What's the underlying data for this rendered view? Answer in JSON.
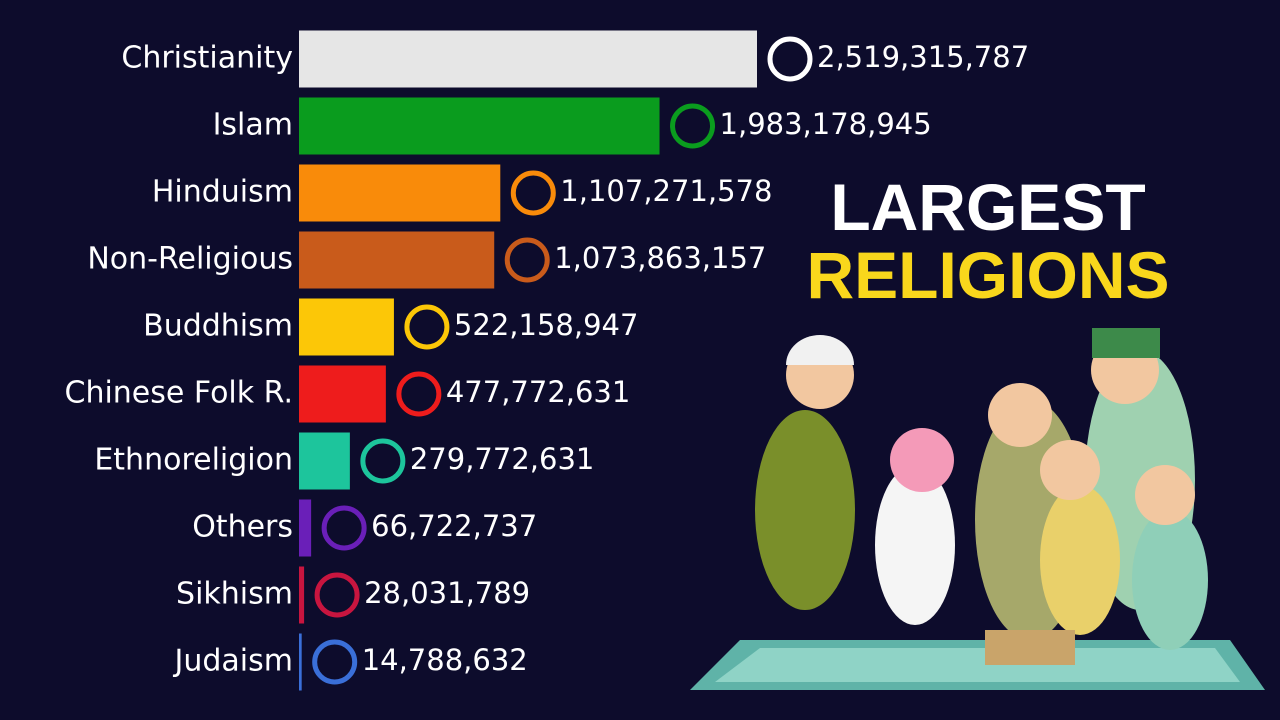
{
  "chart_data": {
    "type": "bar",
    "orientation": "horizontal",
    "title": "LARGEST",
    "subtitle": "RELIGIONS",
    "categories": [
      "Christianity",
      "Islam",
      "Hinduism",
      "Non-Religious",
      "Buddhism",
      "Chinese Folk R.",
      "Ethnoreligion",
      "Others",
      "Sikhism",
      "Judaism"
    ],
    "values": [
      2519315787,
      1983178945,
      1107271578,
      1073863157,
      522158947,
      477772631,
      279772631,
      66722737,
      28031789,
      14788632
    ],
    "value_labels": [
      "2,519,315,787",
      "1,983,178,945",
      "1,107,271,578",
      "1,073,863,157",
      "522,158,947",
      "477,772,631",
      "279,772,631",
      "66,722,737",
      "28,031,789",
      "14,788,632"
    ],
    "colors": [
      "#e6e6e6",
      "#0a9c1e",
      "#f98b0a",
      "#c95b1b",
      "#fcc707",
      "#ee1c1c",
      "#1dc59c",
      "#6a1fb8",
      "#c8153f",
      "#3a6fd8"
    ]
  }
}
